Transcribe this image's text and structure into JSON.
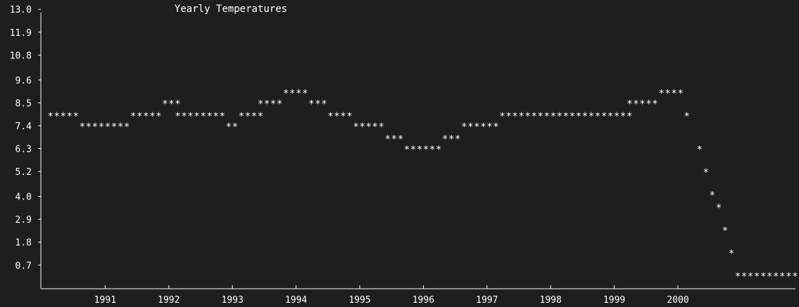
{
  "chart_data": {
    "type": "scatter",
    "title": "Yearly Temperatures",
    "xlabel": "",
    "ylabel": "",
    "marker": "*",
    "grid": false,
    "xlim": [
      1990.0,
      2000.9
    ],
    "ylim": [
      0.0,
      13.3
    ],
    "y_ticks": [
      "13.0",
      "11.9",
      "10.8",
      "9.6",
      "8.5",
      "7.4",
      "6.3",
      "5.2",
      "4.0",
      "2.9",
      "1.8",
      "0.7"
    ],
    "x_ticks": [
      "1991",
      "1992",
      "1993",
      "1994",
      "1995",
      "1996",
      "1997",
      "1998",
      "1999",
      "2000"
    ],
    "segments": [
      {
        "x_start": 1990.05,
        "count": 5,
        "y": 7.9
      },
      {
        "x_start": 1990.55,
        "count": 8,
        "y": 7.4
      },
      {
        "x_start": 1991.35,
        "count": 5,
        "y": 7.9
      },
      {
        "x_start": 1991.85,
        "count": 3,
        "y": 8.5
      },
      {
        "x_start": 1992.05,
        "count": 8,
        "y": 7.9
      },
      {
        "x_start": 1992.85,
        "count": 2,
        "y": 7.4
      },
      {
        "x_start": 1993.05,
        "count": 4,
        "y": 7.9
      },
      {
        "x_start": 1993.35,
        "count": 4,
        "y": 8.5
      },
      {
        "x_start": 1993.75,
        "count": 4,
        "y": 9.0
      },
      {
        "x_start": 1994.15,
        "count": 3,
        "y": 8.5
      },
      {
        "x_start": 1994.45,
        "count": 4,
        "y": 7.9
      },
      {
        "x_start": 1994.85,
        "count": 5,
        "y": 7.4
      },
      {
        "x_start": 1995.35,
        "count": 3,
        "y": 6.8
      },
      {
        "x_start": 1995.65,
        "count": 6,
        "y": 6.3
      },
      {
        "x_start": 1996.25,
        "count": 3,
        "y": 6.8
      },
      {
        "x_start": 1996.55,
        "count": 6,
        "y": 7.4
      },
      {
        "x_start": 1997.15,
        "count": 21,
        "y": 7.9
      },
      {
        "x_start": 1999.15,
        "count": 5,
        "y": 8.5
      },
      {
        "x_start": 1999.65,
        "count": 4,
        "y": 9.0
      },
      {
        "x_start": 2000.05,
        "count": 1,
        "y": 7.9
      },
      {
        "x_start": 2000.25,
        "count": 1,
        "y": 6.3
      },
      {
        "x_start": 2000.35,
        "count": 1,
        "y": 5.2
      },
      {
        "x_start": 2000.45,
        "count": 1,
        "y": 4.1
      },
      {
        "x_start": 2000.55,
        "count": 1,
        "y": 3.5
      },
      {
        "x_start": 2000.65,
        "count": 1,
        "y": 2.4
      },
      {
        "x_start": 2000.75,
        "count": 1,
        "y": 1.3
      },
      {
        "x_start": 2000.85,
        "count": 10,
        "y": 0.2
      }
    ],
    "colors": {
      "background": "#1e1e1e",
      "foreground": "#ffffff"
    }
  }
}
